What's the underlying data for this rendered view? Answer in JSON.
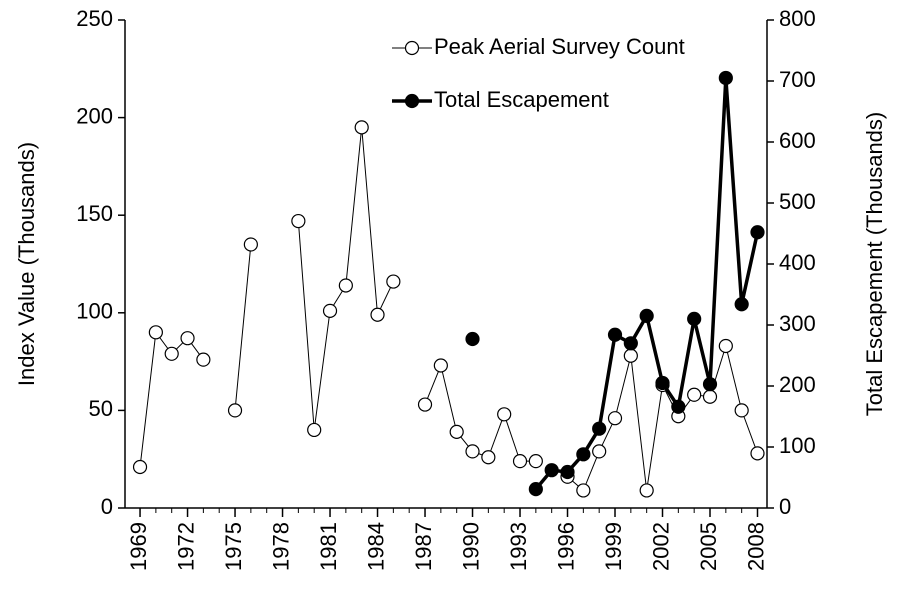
{
  "chart_data": {
    "type": "line",
    "x": [
      1969,
      1970,
      1971,
      1972,
      1973,
      1974,
      1975,
      1976,
      1977,
      1978,
      1979,
      1980,
      1981,
      1982,
      1983,
      1984,
      1985,
      1986,
      1987,
      1988,
      1989,
      1990,
      1991,
      1992,
      1993,
      1994,
      1995,
      1996,
      1997,
      1998,
      1999,
      2000,
      2001,
      2002,
      2003,
      2004,
      2005,
      2006,
      2007,
      2008
    ],
    "series": [
      {
        "name": "Peak Aerial Survey Count",
        "color": "#000000",
        "marker": "open",
        "line_width": 1,
        "values": [
          21,
          90,
          79,
          87,
          76,
          null,
          50,
          135,
          null,
          null,
          147,
          40,
          101,
          114,
          195,
          99,
          116,
          null,
          53,
          73,
          39,
          29,
          26,
          48,
          24,
          24,
          null,
          16,
          9,
          29,
          46,
          78,
          9,
          63,
          47,
          58,
          57,
          83,
          50,
          28
        ]
      },
      {
        "name": "Total Escapement",
        "color": "#000000",
        "marker": "filled",
        "line_width": 3.5,
        "axis": "y2",
        "values": [
          null,
          null,
          null,
          null,
          null,
          null,
          null,
          null,
          null,
          null,
          null,
          null,
          null,
          null,
          null,
          null,
          null,
          null,
          null,
          null,
          null,
          277,
          null,
          null,
          null,
          31,
          62,
          59,
          88,
          130,
          284,
          270,
          315,
          205,
          166,
          310,
          203,
          705,
          334,
          452
        ]
      }
    ],
    "ylabel": "Index Value (Thousands)",
    "y2label": "Total Escapement (Thousands)",
    "xlim": [
      1968.05,
      2008.6
    ],
    "xticks": [
      1969,
      1972,
      1975,
      1978,
      1981,
      1984,
      1987,
      1990,
      1993,
      1996,
      1999,
      2002,
      2005,
      2008
    ],
    "ylim": [
      0,
      250
    ],
    "yticks": [
      0,
      50,
      100,
      150,
      200,
      250
    ],
    "y2lim": [
      0,
      800
    ],
    "y2ticks": [
      0,
      100,
      200,
      300,
      400,
      500,
      600,
      700,
      800
    ],
    "legend": "upper right"
  }
}
